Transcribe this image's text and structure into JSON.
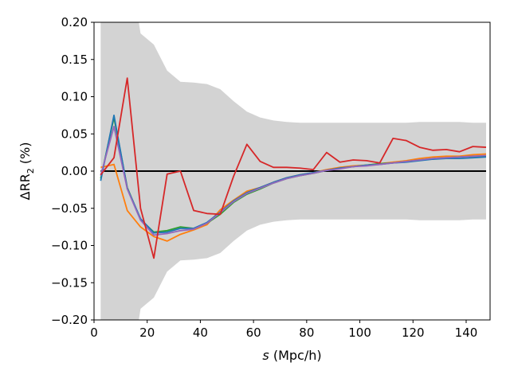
{
  "chart_data": {
    "type": "line",
    "xlabel_var": "s",
    "xlabel_unit": " (Mpc/h)",
    "ylabel_main": "ΔRR",
    "ylabel_sub": "2",
    "ylabel_unit": " (%)",
    "xlim": [
      0,
      149
    ],
    "ylim": [
      -0.2,
      0.2
    ],
    "xticks": [
      0,
      20,
      40,
      60,
      80,
      100,
      120,
      140
    ],
    "yticks": [
      -0.2,
      -0.15,
      -0.1,
      -0.05,
      0.0,
      0.05,
      0.1,
      0.15,
      0.2
    ],
    "xtick_labels": [
      "0",
      "20",
      "40",
      "60",
      "80",
      "100",
      "120",
      "140"
    ],
    "ytick_labels": [
      "−0.20",
      "−0.15",
      "−0.10",
      "−0.05",
      "0.00",
      "0.05",
      "0.10",
      "0.15",
      "0.20"
    ],
    "band": {
      "color": "#d3d3d3",
      "x": [
        2.5,
        7.5,
        12.5,
        17.5,
        22.5,
        27.5,
        32.5,
        37.5,
        42.5,
        47.5,
        52.5,
        57.5,
        62.5,
        67.5,
        72.5,
        77.5,
        82.5,
        87.5,
        92.5,
        97.5,
        102.5,
        107.5,
        112.5,
        117.5,
        122.5,
        127.5,
        132.5,
        137.5,
        142.5,
        147.5
      ],
      "upper": [
        0.3,
        0.3,
        0.3,
        0.185,
        0.17,
        0.135,
        0.12,
        0.119,
        0.117,
        0.11,
        0.094,
        0.08,
        0.072,
        0.068,
        0.066,
        0.065,
        0.065,
        0.065,
        0.065,
        0.065,
        0.065,
        0.065,
        0.065,
        0.065,
        0.066,
        0.066,
        0.066,
        0.066,
        0.065,
        0.065
      ],
      "lower": [
        -0.3,
        -0.3,
        -0.3,
        -0.185,
        -0.17,
        -0.135,
        -0.12,
        -0.119,
        -0.117,
        -0.11,
        -0.094,
        -0.08,
        -0.072,
        -0.068,
        -0.066,
        -0.065,
        -0.065,
        -0.065,
        -0.065,
        -0.065,
        -0.065,
        -0.065,
        -0.065,
        -0.065,
        -0.066,
        -0.066,
        -0.066,
        -0.066,
        -0.065,
        -0.065
      ]
    },
    "zero_line": {
      "y": 0.0,
      "color": "#000000"
    },
    "series": [
      {
        "color": "#ff7f0e",
        "x": [
          2.5,
          7.5,
          12.5,
          17.5,
          22.5,
          27.5,
          32.5,
          37.5,
          42.5,
          47.5,
          52.5,
          57.5,
          62.5,
          67.5,
          72.5,
          77.5,
          82.5,
          87.5,
          92.5,
          97.5,
          102.5,
          107.5,
          112.5,
          117.5,
          122.5,
          127.5,
          132.5,
          137.5,
          142.5,
          147.5
        ],
        "y": [
          0.005,
          0.009,
          -0.053,
          -0.075,
          -0.088,
          -0.094,
          -0.085,
          -0.079,
          -0.072,
          -0.052,
          -0.039,
          -0.027,
          -0.022,
          -0.015,
          -0.009,
          -0.005,
          -0.002,
          0.002,
          0.005,
          0.007,
          0.008,
          0.01,
          0.012,
          0.014,
          0.017,
          0.019,
          0.02,
          0.02,
          0.022,
          0.023
        ]
      },
      {
        "color": "#2ca02c",
        "x": [
          2.5,
          7.5,
          12.5,
          17.5,
          22.5,
          27.5,
          32.5,
          37.5,
          42.5,
          47.5,
          52.5,
          57.5,
          62.5,
          67.5,
          72.5,
          77.5,
          82.5,
          87.5,
          92.5,
          97.5,
          102.5,
          107.5,
          112.5,
          117.5,
          122.5,
          127.5,
          132.5,
          137.5,
          142.5,
          147.5
        ],
        "y": [
          -0.01,
          0.072,
          -0.022,
          -0.065,
          -0.082,
          -0.08,
          -0.075,
          -0.077,
          -0.07,
          -0.058,
          -0.042,
          -0.031,
          -0.024,
          -0.016,
          -0.01,
          -0.006,
          -0.003,
          0.001,
          0.004,
          0.006,
          0.008,
          0.01,
          0.011,
          0.013,
          0.015,
          0.017,
          0.018,
          0.019,
          0.02,
          0.02
        ]
      },
      {
        "color": "#1f77b4",
        "x": [
          2.5,
          7.5,
          12.5,
          17.5,
          22.5,
          27.5,
          32.5,
          37.5,
          42.5,
          47.5,
          52.5,
          57.5,
          62.5,
          67.5,
          72.5,
          77.5,
          82.5,
          87.5,
          92.5,
          97.5,
          102.5,
          107.5,
          112.5,
          117.5,
          122.5,
          127.5,
          132.5,
          137.5,
          142.5,
          147.5
        ],
        "y": [
          -0.013,
          0.075,
          -0.023,
          -0.064,
          -0.083,
          -0.082,
          -0.077,
          -0.077,
          -0.069,
          -0.055,
          -0.04,
          -0.029,
          -0.022,
          -0.015,
          -0.009,
          -0.005,
          -0.002,
          0.001,
          0.004,
          0.006,
          0.008,
          0.009,
          0.011,
          0.012,
          0.014,
          0.016,
          0.017,
          0.017,
          0.018,
          0.019
        ]
      },
      {
        "color": "#9467bd",
        "x": [
          2.5,
          7.5,
          12.5,
          17.5,
          22.5,
          27.5,
          32.5,
          37.5,
          42.5,
          47.5,
          52.5,
          57.5,
          62.5,
          67.5,
          72.5,
          77.5,
          82.5,
          87.5,
          92.5,
          97.5,
          102.5,
          107.5,
          112.5,
          117.5,
          122.5,
          127.5,
          132.5,
          137.5,
          142.5,
          147.5
        ],
        "y": [
          -0.006,
          0.06,
          -0.024,
          -0.066,
          -0.086,
          -0.084,
          -0.08,
          -0.078,
          -0.07,
          -0.056,
          -0.041,
          -0.03,
          -0.023,
          -0.016,
          -0.01,
          -0.006,
          -0.003,
          0.001,
          0.003,
          0.006,
          0.007,
          0.009,
          0.011,
          0.013,
          0.015,
          0.017,
          0.018,
          0.019,
          0.02,
          0.021
        ]
      },
      {
        "color": "#d62728",
        "x": [
          2.5,
          7.5,
          12.5,
          17.5,
          22.5,
          27.5,
          32.5,
          37.5,
          42.5,
          47.5,
          52.5,
          57.5,
          62.5,
          67.5,
          72.5,
          77.5,
          82.5,
          87.5,
          92.5,
          97.5,
          102.5,
          107.5,
          112.5,
          117.5,
          122.5,
          127.5,
          132.5,
          137.5,
          142.5,
          147.5
        ],
        "y": [
          -0.005,
          0.018,
          0.125,
          -0.05,
          -0.117,
          -0.004,
          0.0,
          -0.053,
          -0.057,
          -0.058,
          -0.007,
          0.036,
          0.013,
          0.005,
          0.005,
          0.004,
          0.002,
          0.025,
          0.012,
          0.015,
          0.014,
          0.011,
          0.044,
          0.041,
          0.032,
          0.028,
          0.029,
          0.026,
          0.033,
          0.032
        ]
      }
    ]
  }
}
